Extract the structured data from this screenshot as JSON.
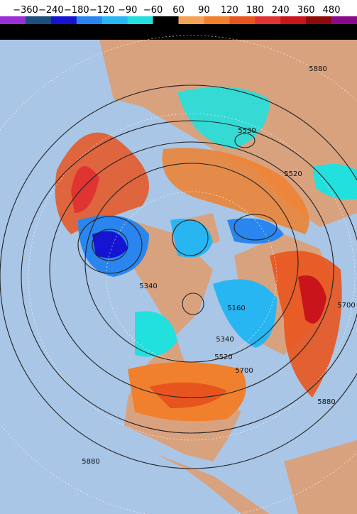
{
  "legend": {
    "labels": [
      "−360",
      "−240",
      "−180",
      "−120",
      "−90",
      "−60",
      "60",
      "90",
      "120",
      "180",
      "240",
      "360",
      "480"
    ],
    "colors": [
      "#9a2fd6",
      "#1d4f7c",
      "#1414d2",
      "#2a86ee",
      "#28b6f2",
      "#22e0de",
      "#000000",
      "#f6a35a",
      "#f0802e",
      "#e8541e",
      "#e03432",
      "#c8141a",
      "#8e0a0a",
      "#8a0a8c"
    ]
  },
  "contour_labels": [
    "5880",
    "5530",
    "5520",
    "5340",
    "5160",
    "5340",
    "5520",
    "5700",
    "5700",
    "5880",
    "5880"
  ]
}
